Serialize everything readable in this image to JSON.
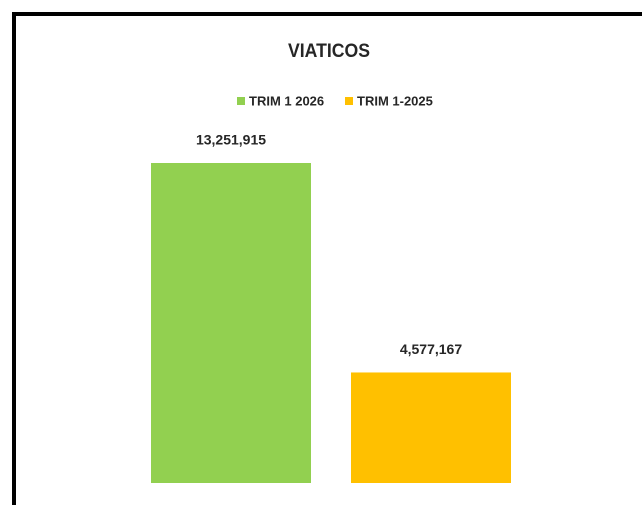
{
  "chart_data": {
    "type": "bar",
    "title": "VIATICOS",
    "categories": [
      null
    ],
    "series": [
      {
        "name": "TRIM 1 2026",
        "color": "#92d050",
        "values": [
          13251915
        ],
        "value_labels": [
          "13,251,915"
        ]
      },
      {
        "name": "TRIM 1-2025",
        "color": "#ffc000",
        "values": [
          4577167
        ],
        "value_labels": [
          "4,577,167"
        ]
      }
    ]
  }
}
